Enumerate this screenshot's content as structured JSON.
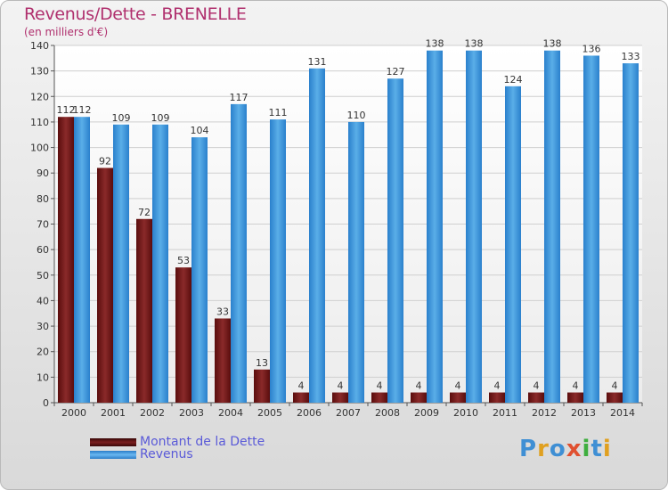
{
  "title": "Revenus/Dette - BRENELLE",
  "subtitle": "(en milliers d'€)",
  "chart_data": {
    "type": "bar",
    "categories": [
      "2000",
      "2001",
      "2002",
      "2003",
      "2004",
      "2005",
      "2006",
      "2007",
      "2008",
      "2009",
      "2010",
      "2011",
      "2012",
      "2013",
      "2014"
    ],
    "series": [
      {
        "name": "Montant de la Dette",
        "color": "#7a1e1e",
        "values": [
          112,
          92,
          72,
          53,
          33,
          13,
          4,
          4,
          4,
          4,
          4,
          4,
          4,
          4,
          4
        ]
      },
      {
        "name": "Revenus",
        "color": "#4a9de0",
        "values": [
          112,
          109,
          109,
          104,
          117,
          111,
          131,
          110,
          127,
          138,
          138,
          124,
          138,
          136,
          133
        ]
      }
    ],
    "ylim": [
      0,
      140
    ],
    "yticks": [
      0,
      10,
      20,
      30,
      40,
      50,
      60,
      70,
      80,
      90,
      100,
      110,
      120,
      130,
      140
    ],
    "grid": true,
    "legend_position": "bottom-left"
  },
  "logo": {
    "text": "Proxiti",
    "colors": [
      "#3f8fd4",
      "#e0a020",
      "#3f8fd4",
      "#e05030",
      "#3fae3f",
      "#3f8fd4",
      "#e0a020"
    ]
  }
}
